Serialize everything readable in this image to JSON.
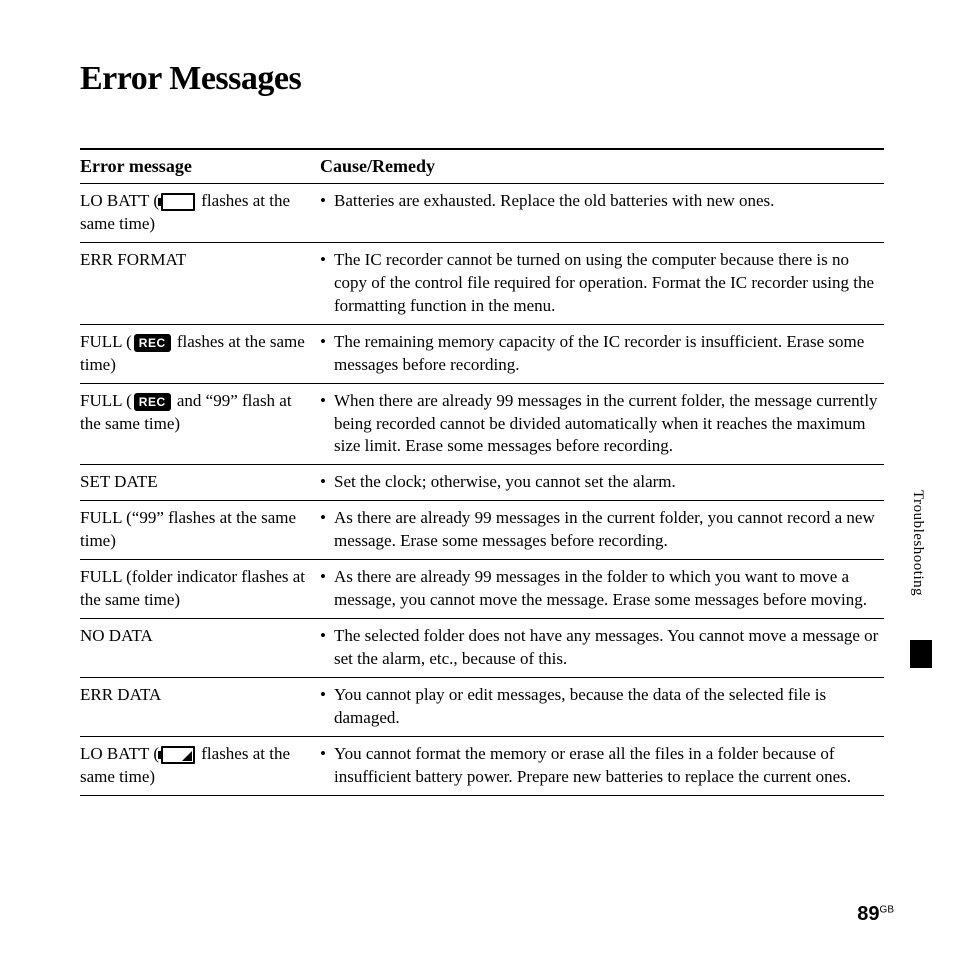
{
  "title": "Error Messages",
  "columns": {
    "msg": "Error message",
    "remedy": "Cause/Remedy"
  },
  "rows": [
    {
      "msg_pre": "LO BATT (",
      "icon": "battery-empty",
      "msg_post": " flashes at the same time)",
      "remedy": "Batteries are exhausted. Replace the old batteries with new ones."
    },
    {
      "msg_pre": "ERR FORMAT",
      "icon": null,
      "msg_post": "",
      "remedy": "The IC recorder cannot be turned on using the computer because there is no copy of the control file required for operation. Format the IC recorder using the formatting function in the menu."
    },
    {
      "msg_pre": "FULL (",
      "icon": "rec",
      "msg_post": " flashes at the same time)",
      "remedy": "The remaining memory capacity of the IC recorder is insufficient. Erase some messages before recording."
    },
    {
      "msg_pre": "FULL (",
      "icon": "rec",
      "msg_post": " and “99” flash at the same time)",
      "remedy": "When there are already 99 messages in the current folder, the message currently being recorded cannot be divided automatically when it reaches the maximum size limit. Erase some messages before recording."
    },
    {
      "msg_pre": "SET DATE",
      "icon": null,
      "msg_post": "",
      "remedy": "Set the clock; otherwise, you cannot set the alarm."
    },
    {
      "msg_pre": "FULL (“99” flashes at the same time)",
      "icon": null,
      "msg_post": "",
      "remedy": "As there are already 99 messages in the current folder, you cannot record a new message. Erase some messages before recording."
    },
    {
      "msg_pre": "FULL (folder indicator flashes at the same time)",
      "icon": null,
      "msg_post": "",
      "remedy": "As there are already 99 messages in the folder to which you want to move a message, you cannot move the message. Erase some messages before moving."
    },
    {
      "msg_pre": "NO DATA",
      "icon": null,
      "msg_post": "",
      "remedy": "The selected folder does not have any messages. You cannot move a message or set the alarm, etc., because of this."
    },
    {
      "msg_pre": "ERR DATA",
      "icon": null,
      "msg_post": "",
      "remedy": "You cannot play or edit messages, because the data of the selected file is damaged."
    },
    {
      "msg_pre": "LO BATT (",
      "icon": "battery-low",
      "msg_post": " flashes at the same time)",
      "remedy": "You cannot format the memory or erase all the files in a folder because of insufficient battery power. Prepare new batteries to replace the current ones."
    }
  ],
  "side_label": "Troubleshooting",
  "page_number": "89",
  "page_suffix": "GB",
  "colors": {
    "text": "#000000",
    "background": "#ffffff",
    "rule": "#000000"
  },
  "typography": {
    "title_pt": 34,
    "body_pt": 17,
    "header_pt": 18,
    "family": "Times New Roman"
  }
}
